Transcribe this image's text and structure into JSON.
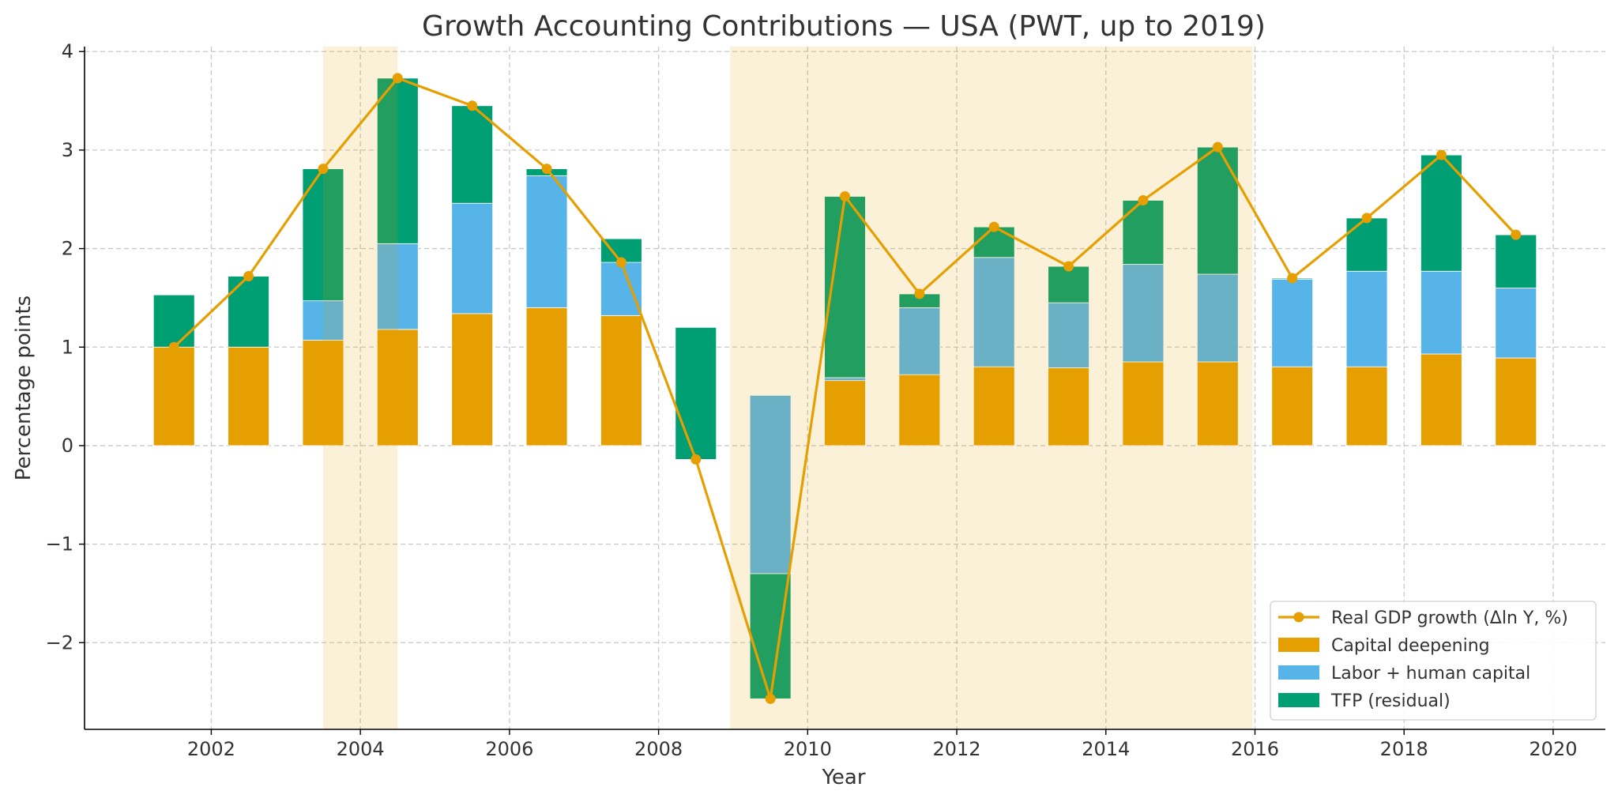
{
  "chart_data": {
    "type": "bar",
    "title": "Growth Accounting Contributions — USA (PWT, up to 2019)",
    "xlabel": "Year",
    "ylabel": "Percentage points",
    "xlim": [
      2000.3,
      2020.7
    ],
    "ylim": [
      -2.88,
      4.05
    ],
    "grid": true,
    "legend_position": "bottom-right",
    "x_ticks": [
      2002,
      2004,
      2006,
      2008,
      2010,
      2012,
      2014,
      2016,
      2018,
      2020
    ],
    "y_ticks": [
      -2,
      -1,
      0,
      1,
      2,
      3,
      4
    ],
    "y_tick_labels": [
      "−2",
      "−1",
      "0",
      "1",
      "2",
      "3",
      "4"
    ],
    "x": [
      2001.5,
      2002.5,
      2003.5,
      2004.5,
      2005.5,
      2006.5,
      2007.5,
      2008.5,
      2009.5,
      2010.5,
      2011.5,
      2012.5,
      2013.5,
      2014.5,
      2015.5,
      2016.5,
      2017.5,
      2018.5,
      2019.5
    ],
    "series": [
      {
        "name": "Capital deepening",
        "kind": "bar",
        "color": "#E69F00",
        "values": [
          1.53,
          1.0,
          1.07,
          1.18,
          1.34,
          1.4,
          1.32,
          1.2,
          0.51,
          0.66,
          0.72,
          0.8,
          0.79,
          0.85,
          0.85,
          0.8,
          0.8,
          0.93,
          0.89
        ]
      },
      {
        "name": "Labor + human capital",
        "kind": "bar",
        "color": "#56B4E9",
        "values": [
          0.0,
          0.0,
          0.4,
          0.87,
          1.12,
          1.34,
          0.78,
          0.0,
          -1.81,
          0.03,
          0.68,
          1.11,
          0.66,
          0.99,
          0.89,
          0.89,
          0.97,
          0.84,
          0.71
        ]
      },
      {
        "name": "TFP (residual)",
        "kind": "bar",
        "color": "#009E73",
        "values": [
          -0.53,
          0.72,
          1.34,
          1.68,
          0.99,
          0.07,
          -0.24,
          -1.34,
          -1.27,
          1.84,
          0.14,
          0.31,
          0.37,
          0.65,
          1.29,
          0.01,
          0.54,
          1.18,
          0.54
        ]
      },
      {
        "name": "Real GDP growth (Δln Y, %)",
        "kind": "line",
        "color": "#E69F00",
        "values": [
          1.0,
          1.72,
          2.81,
          3.73,
          3.45,
          2.81,
          1.86,
          -0.14,
          -2.57,
          2.53,
          1.54,
          2.22,
          1.82,
          2.49,
          3.03,
          1.7,
          2.31,
          2.95,
          2.14
        ]
      }
    ],
    "shaded_periods": [
      [
        2003.5,
        2004.5
      ],
      [
        2008.96,
        2015.97
      ]
    ],
    "legend_order": [
      "Real GDP growth (Δln Y, %)",
      "Capital deepening",
      "Labor + human capital",
      "TFP (residual)"
    ]
  }
}
